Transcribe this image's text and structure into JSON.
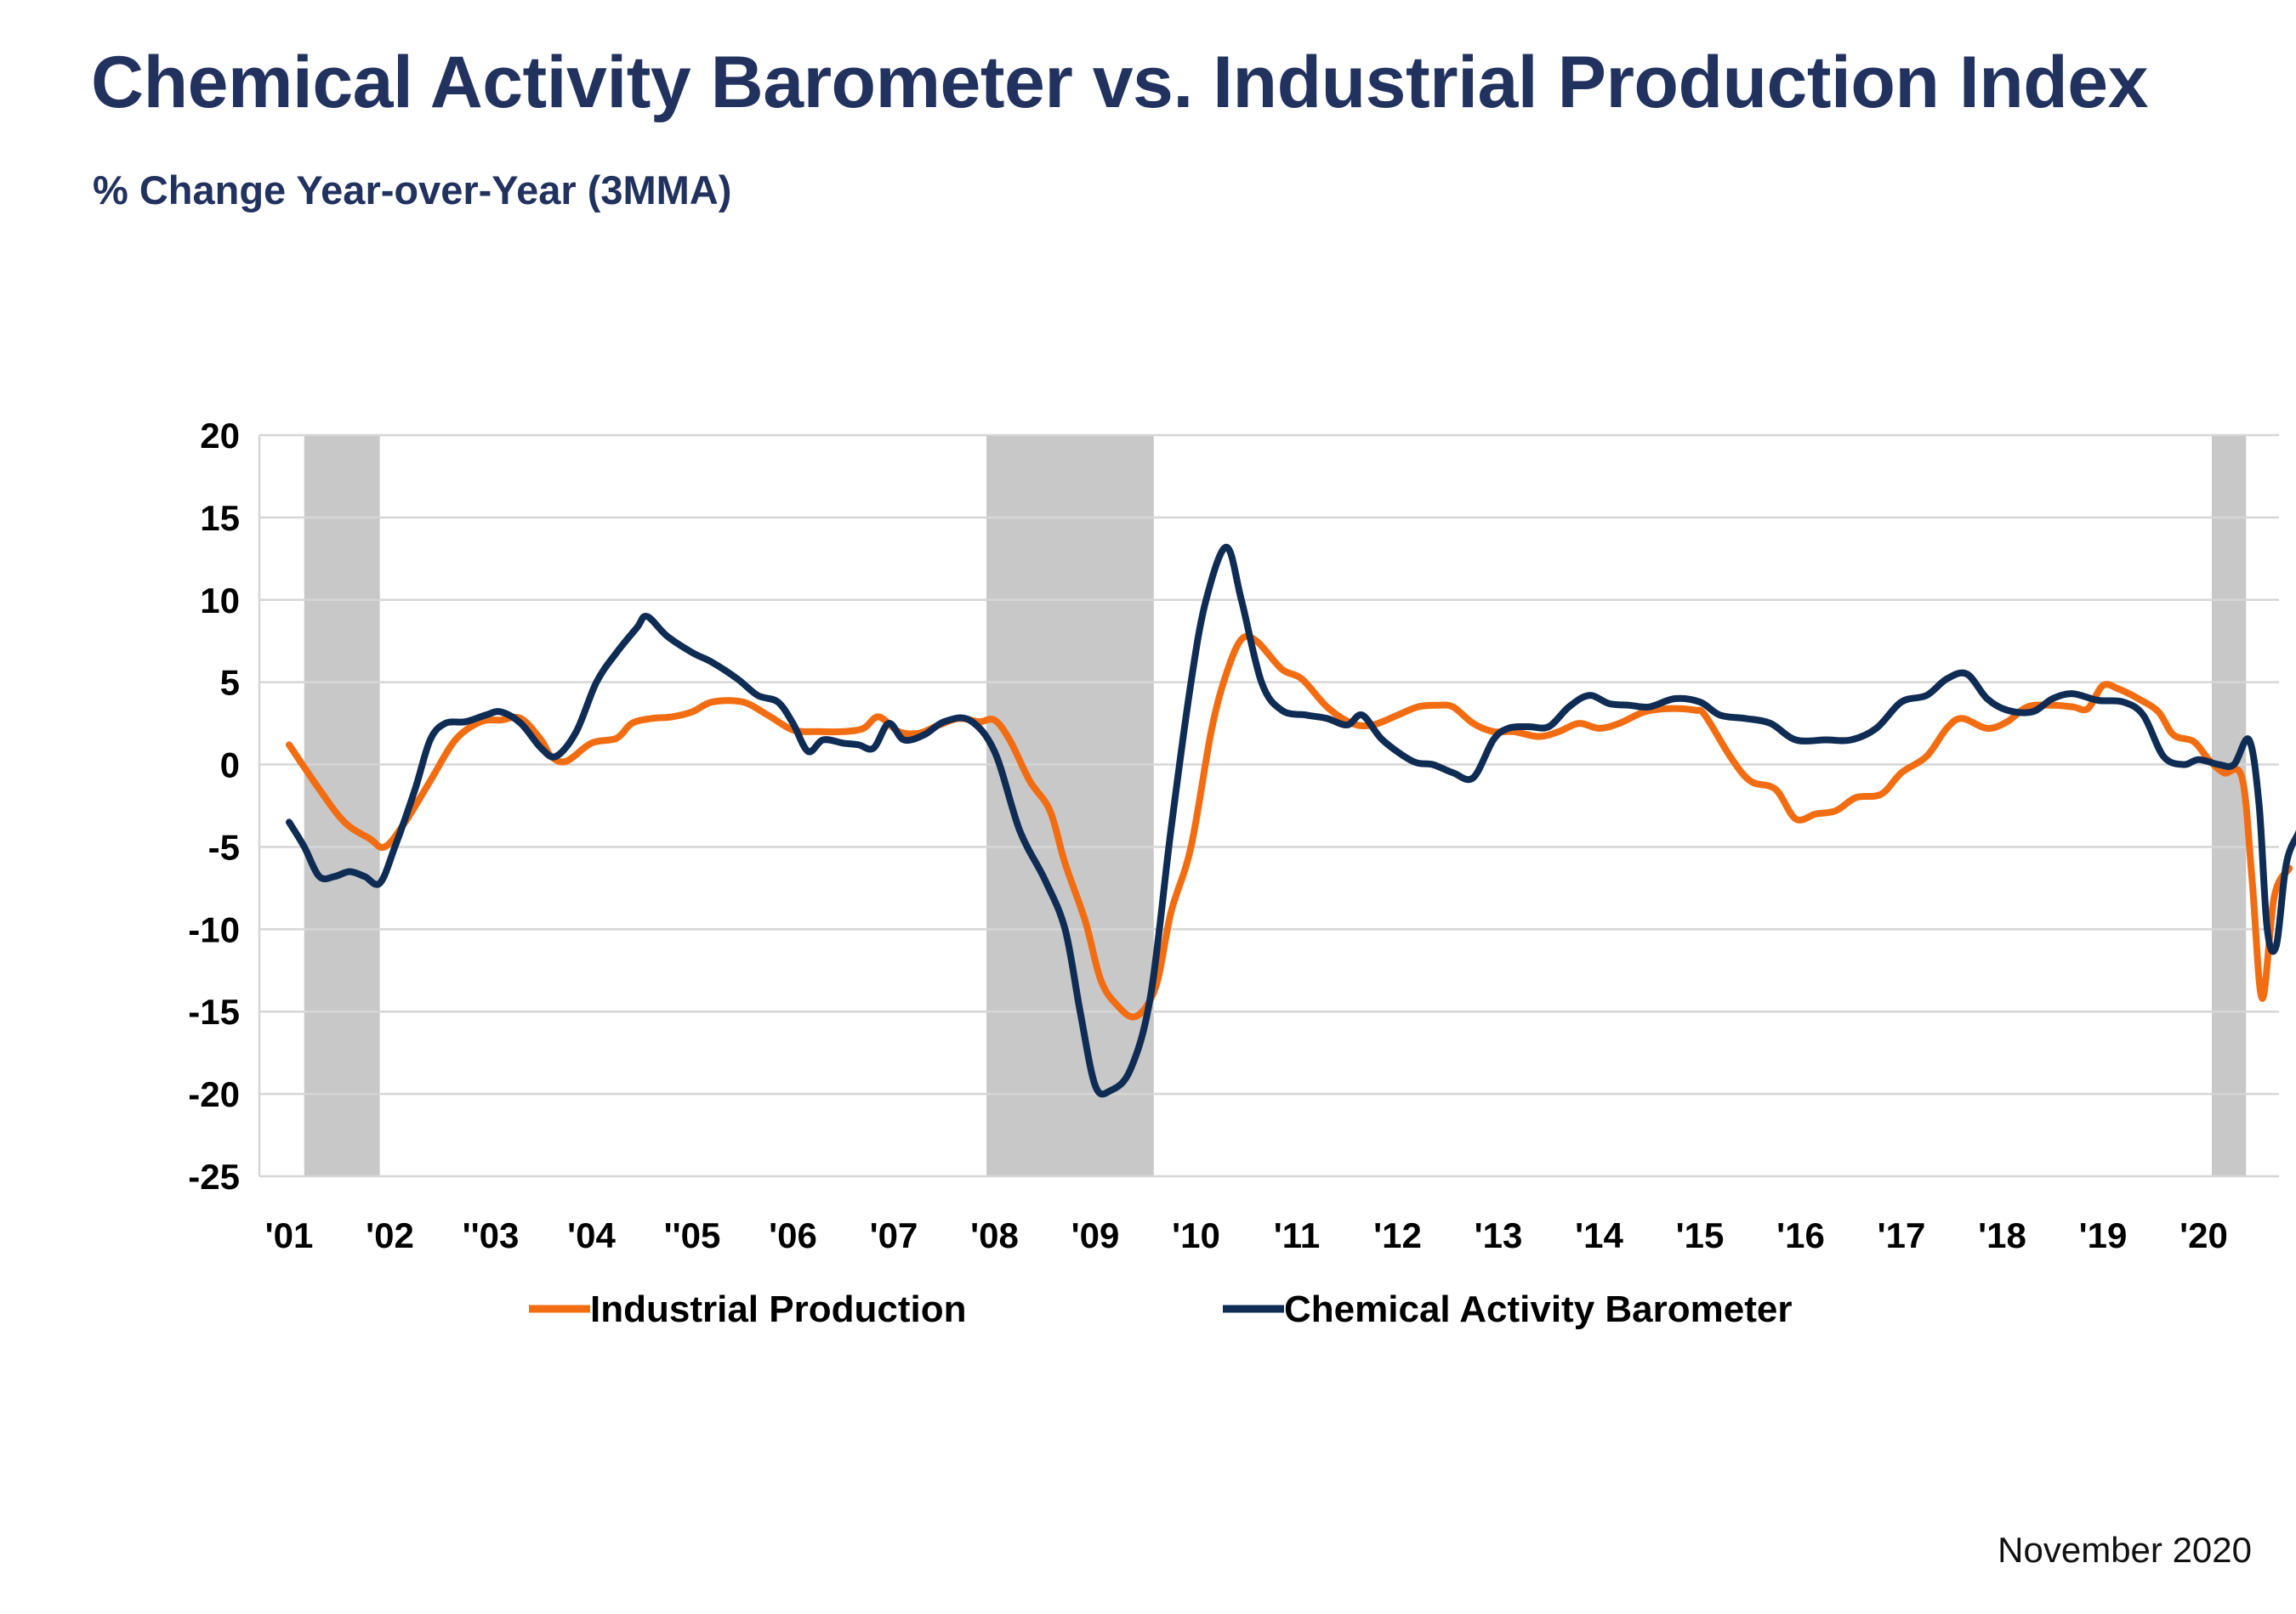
{
  "chart_data": {
    "type": "line",
    "title": "Chemical Activity Barometer vs. Industrial Production Index",
    "subtitle": "% Change Year-over-Year (3MMA)",
    "date_label": "November 2020",
    "ylim": [
      -25,
      20
    ],
    "xlim": [
      2001.0,
      2020.85
    ],
    "y_ticks": [
      20,
      15,
      10,
      5,
      0,
      -5,
      -10,
      -15,
      -20,
      -25
    ],
    "x_ticks": [
      {
        "x": 2001,
        "label": "'01"
      },
      {
        "x": 2002,
        "label": "'02"
      },
      {
        "x": 2003,
        "label": "''03"
      },
      {
        "x": 2004,
        "label": "'04"
      },
      {
        "x": 2005,
        "label": "''05"
      },
      {
        "x": 2006,
        "label": "'06"
      },
      {
        "x": 2007,
        "label": "'07"
      },
      {
        "x": 2008,
        "label": "'08"
      },
      {
        "x": 2009,
        "label": "'09"
      },
      {
        "x": 2010,
        "label": "'10"
      },
      {
        "x": 2011,
        "label": "'11"
      },
      {
        "x": 2012,
        "label": "'12"
      },
      {
        "x": 2013,
        "label": "'13"
      },
      {
        "x": 2014,
        "label": "'14"
      },
      {
        "x": 2015,
        "label": "'15"
      },
      {
        "x": 2016,
        "label": "'16"
      },
      {
        "x": 2017,
        "label": "'17"
      },
      {
        "x": 2018,
        "label": "'18"
      },
      {
        "x": 2019,
        "label": "'19"
      },
      {
        "x": 2020,
        "label": "'20"
      }
    ],
    "grid": true,
    "legend_position": "bottom",
    "recessions": [
      [
        2001.15,
        2001.9
      ],
      [
        2007.92,
        2009.58
      ],
      [
        2020.08,
        2020.42
      ]
    ],
    "colors": {
      "industrial_production": "#f26d12",
      "cab": "#0f2c54",
      "recession": "#c8c8c8",
      "grid": "#d6d6d6",
      "title": "#22325f"
    },
    "series": [
      {
        "name": "Industrial Production",
        "key": "industrial_production",
        "points": [
          [
            2001.0,
            1.2
          ],
          [
            2001.3,
            -1.5
          ],
          [
            2001.55,
            -3.5
          ],
          [
            2001.8,
            -4.5
          ],
          [
            2001.95,
            -5.0
          ],
          [
            2002.15,
            -3.5
          ],
          [
            2002.4,
            -1.0
          ],
          [
            2002.65,
            1.5
          ],
          [
            2002.9,
            2.6
          ],
          [
            2003.1,
            2.7
          ],
          [
            2003.3,
            2.8
          ],
          [
            2003.5,
            1.5
          ],
          [
            2003.6,
            0.5
          ],
          [
            2003.75,
            0.2
          ],
          [
            2004.0,
            1.3
          ],
          [
            2004.25,
            1.6
          ],
          [
            2004.4,
            2.5
          ],
          [
            2004.6,
            2.8
          ],
          [
            2004.8,
            2.9
          ],
          [
            2005.0,
            3.2
          ],
          [
            2005.2,
            3.8
          ],
          [
            2005.5,
            3.8
          ],
          [
            2005.75,
            3.0
          ],
          [
            2006.0,
            2.1
          ],
          [
            2006.25,
            2.0
          ],
          [
            2006.5,
            2.0
          ],
          [
            2006.7,
            2.2
          ],
          [
            2006.85,
            2.9
          ],
          [
            2007.05,
            2.0
          ],
          [
            2007.25,
            1.9
          ],
          [
            2007.45,
            2.4
          ],
          [
            2007.65,
            2.8
          ],
          [
            2007.85,
            2.6
          ],
          [
            2008.0,
            2.7
          ],
          [
            2008.15,
            1.5
          ],
          [
            2008.35,
            -1.0
          ],
          [
            2008.55,
            -2.8
          ],
          [
            2008.7,
            -6.0
          ],
          [
            2008.9,
            -9.5
          ],
          [
            2009.05,
            -13.0
          ],
          [
            2009.2,
            -14.5
          ],
          [
            2009.4,
            -15.3
          ],
          [
            2009.6,
            -13.5
          ],
          [
            2009.75,
            -9.0
          ],
          [
            2009.95,
            -5.0
          ],
          [
            2010.15,
            2.0
          ],
          [
            2010.3,
            5.5
          ],
          [
            2010.45,
            7.6
          ],
          [
            2010.6,
            7.5
          ],
          [
            2010.85,
            5.8
          ],
          [
            2011.05,
            5.2
          ],
          [
            2011.3,
            3.5
          ],
          [
            2011.55,
            2.5
          ],
          [
            2011.75,
            2.4
          ],
          [
            2012.0,
            3.0
          ],
          [
            2012.2,
            3.5
          ],
          [
            2012.4,
            3.6
          ],
          [
            2012.55,
            3.5
          ],
          [
            2012.75,
            2.5
          ],
          [
            2012.95,
            2.0
          ],
          [
            2013.15,
            2.0
          ],
          [
            2013.4,
            1.7
          ],
          [
            2013.6,
            2.0
          ],
          [
            2013.8,
            2.5
          ],
          [
            2014.0,
            2.2
          ],
          [
            2014.2,
            2.5
          ],
          [
            2014.45,
            3.2
          ],
          [
            2014.7,
            3.4
          ],
          [
            2014.95,
            3.3
          ],
          [
            2015.05,
            3.0
          ],
          [
            2015.3,
            0.5
          ],
          [
            2015.5,
            -1.0
          ],
          [
            2015.75,
            -1.5
          ],
          [
            2015.95,
            -3.3
          ],
          [
            2016.15,
            -3.0
          ],
          [
            2016.35,
            -2.8
          ],
          [
            2016.55,
            -2.0
          ],
          [
            2016.8,
            -1.8
          ],
          [
            2017.0,
            -0.5
          ],
          [
            2017.25,
            0.5
          ],
          [
            2017.45,
            2.2
          ],
          [
            2017.6,
            2.8
          ],
          [
            2017.85,
            2.2
          ],
          [
            2018.05,
            2.6
          ],
          [
            2018.25,
            3.5
          ],
          [
            2018.5,
            3.6
          ],
          [
            2018.7,
            3.5
          ],
          [
            2018.85,
            3.4
          ],
          [
            2019.0,
            4.8
          ],
          [
            2019.15,
            4.6
          ],
          [
            2019.35,
            4.0
          ],
          [
            2019.55,
            3.2
          ],
          [
            2019.7,
            1.8
          ],
          [
            2019.9,
            1.4
          ],
          [
            2020.05,
            0.3
          ],
          [
            2020.2,
            -0.5
          ],
          [
            2020.38,
            -0.8
          ],
          [
            2020.48,
            -7.0
          ],
          [
            2020.58,
            -14.2
          ],
          [
            2020.7,
            -8.0
          ],
          [
            2020.85,
            -6.3
          ]
        ]
      },
      {
        "name": "Chemical Activity Barometer",
        "key": "cab",
        "points": [
          [
            2001.0,
            -3.5
          ],
          [
            2001.15,
            -5.0
          ],
          [
            2001.3,
            -6.8
          ],
          [
            2001.45,
            -6.8
          ],
          [
            2001.6,
            -6.5
          ],
          [
            2001.75,
            -6.8
          ],
          [
            2001.9,
            -7.2
          ],
          [
            2002.05,
            -5.0
          ],
          [
            2002.25,
            -1.5
          ],
          [
            2002.4,
            1.5
          ],
          [
            2002.55,
            2.5
          ],
          [
            2002.75,
            2.6
          ],
          [
            2002.95,
            3.0
          ],
          [
            2003.1,
            3.2
          ],
          [
            2003.3,
            2.5
          ],
          [
            2003.5,
            1.0
          ],
          [
            2003.65,
            0.5
          ],
          [
            2003.85,
            2.0
          ],
          [
            2004.05,
            5.0
          ],
          [
            2004.25,
            6.8
          ],
          [
            2004.45,
            8.3
          ],
          [
            2004.55,
            9.0
          ],
          [
            2004.75,
            7.8
          ],
          [
            2005.0,
            6.8
          ],
          [
            2005.2,
            6.2
          ],
          [
            2005.45,
            5.2
          ],
          [
            2005.65,
            4.2
          ],
          [
            2005.85,
            3.8
          ],
          [
            2006.0,
            2.5
          ],
          [
            2006.15,
            0.8
          ],
          [
            2006.3,
            1.5
          ],
          [
            2006.5,
            1.3
          ],
          [
            2006.65,
            1.2
          ],
          [
            2006.8,
            1.0
          ],
          [
            2006.95,
            2.5
          ],
          [
            2007.1,
            1.5
          ],
          [
            2007.3,
            1.8
          ],
          [
            2007.5,
            2.6
          ],
          [
            2007.75,
            2.7
          ],
          [
            2008.0,
            0.8
          ],
          [
            2008.25,
            -4.0
          ],
          [
            2008.5,
            -7.0
          ],
          [
            2008.7,
            -10.0
          ],
          [
            2008.85,
            -15.0
          ],
          [
            2009.0,
            -19.5
          ],
          [
            2009.15,
            -19.8
          ],
          [
            2009.35,
            -18.5
          ],
          [
            2009.55,
            -14.0
          ],
          [
            2009.75,
            -4.0
          ],
          [
            2009.95,
            5.0
          ],
          [
            2010.1,
            10.0
          ],
          [
            2010.3,
            13.2
          ],
          [
            2010.45,
            10.0
          ],
          [
            2010.65,
            5.0
          ],
          [
            2010.85,
            3.3
          ],
          [
            2011.1,
            3.0
          ],
          [
            2011.3,
            2.8
          ],
          [
            2011.5,
            2.4
          ],
          [
            2011.65,
            3.0
          ],
          [
            2011.85,
            1.5
          ],
          [
            2012.15,
            0.2
          ],
          [
            2012.35,
            0.0
          ],
          [
            2012.55,
            -0.5
          ],
          [
            2012.75,
            -0.8
          ],
          [
            2012.95,
            1.5
          ],
          [
            2013.1,
            2.2
          ],
          [
            2013.3,
            2.3
          ],
          [
            2013.5,
            2.3
          ],
          [
            2013.7,
            3.5
          ],
          [
            2013.9,
            4.2
          ],
          [
            2014.1,
            3.7
          ],
          [
            2014.3,
            3.6
          ],
          [
            2014.5,
            3.5
          ],
          [
            2014.75,
            4.0
          ],
          [
            2015.0,
            3.8
          ],
          [
            2015.2,
            3.0
          ],
          [
            2015.45,
            2.8
          ],
          [
            2015.7,
            2.5
          ],
          [
            2015.95,
            1.5
          ],
          [
            2016.25,
            1.5
          ],
          [
            2016.5,
            1.5
          ],
          [
            2016.75,
            2.2
          ],
          [
            2017.0,
            3.8
          ],
          [
            2017.25,
            4.2
          ],
          [
            2017.45,
            5.2
          ],
          [
            2017.65,
            5.5
          ],
          [
            2017.85,
            4.0
          ],
          [
            2018.05,
            3.3
          ],
          [
            2018.3,
            3.2
          ],
          [
            2018.5,
            4.0
          ],
          [
            2018.7,
            4.3
          ],
          [
            2018.95,
            3.9
          ],
          [
            2019.2,
            3.8
          ],
          [
            2019.4,
            3.0
          ],
          [
            2019.6,
            0.5
          ],
          [
            2019.8,
            0.0
          ],
          [
            2019.95,
            0.3
          ],
          [
            2020.15,
            0.0
          ],
          [
            2020.3,
            0.0
          ],
          [
            2020.45,
            1.5
          ],
          [
            2020.55,
            -2.5
          ],
          [
            2020.63,
            -10.0
          ],
          [
            2020.72,
            -11.0
          ],
          [
            2020.82,
            -6.0
          ],
          [
            2020.95,
            -4.0
          ],
          [
            2021.05,
            -2.3
          ]
        ]
      }
    ]
  }
}
